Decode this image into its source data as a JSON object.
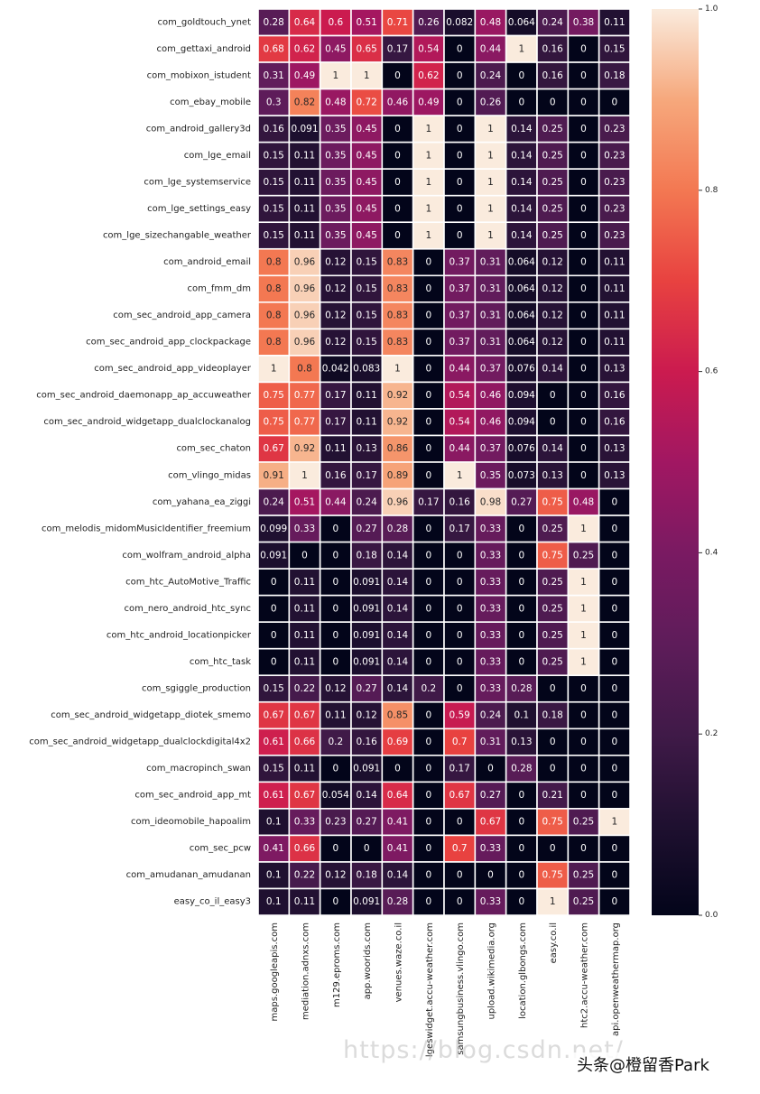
{
  "chart_data": {
    "type": "heatmap",
    "rows": [
      "com_goldtouch_ynet",
      "com_gettaxi_android",
      "com_mobixon_istudent",
      "com_ebay_mobile",
      "com_android_gallery3d",
      "com_lge_email",
      "com_lge_systemservice",
      "com_lge_settings_easy",
      "com_lge_sizechangable_weather",
      "com_android_email",
      "com_fmm_dm",
      "com_sec_android_app_camera",
      "com_sec_android_app_clockpackage",
      "com_sec_android_app_videoplayer",
      "com_sec_android_daemonapp_ap_accuweather",
      "com_sec_android_widgetapp_dualclockanalog",
      "com_sec_chaton",
      "com_vlingo_midas",
      "com_yahana_ea_ziggi",
      "com_melodis_midomMusicIdentifier_freemium",
      "com_wolfram_android_alpha",
      "com_htc_AutoMotive_Traffic",
      "com_nero_android_htc_sync",
      "com_htc_android_locationpicker",
      "com_htc_task",
      "com_sgiggle_production",
      "com_sec_android_widgetapp_diotek_smemo",
      "com_sec_android_widgetapp_dualclockdigital4x2",
      "com_macropinch_swan",
      "com_sec_android_app_mt",
      "com_ideomobile_hapoalim",
      "com_sec_pcw",
      "com_amudanan_amudanan",
      "easy_co_il_easy3"
    ],
    "columns": [
      "maps.googleapis.com",
      "mediation.adnxs.com",
      "m129.eproms.com",
      "app.woorids.com",
      "venues.waze.co.il",
      "lgeswidget.accu-weather.com",
      "samsungbusiness.vlingo.com",
      "upload.wikimedia.org",
      "location.glbongs.com",
      "easy.co.il",
      "htc2.accu-weather.com",
      "api.openweathermap.org"
    ],
    "values": [
      [
        "0.28",
        "0.64",
        "0.6",
        "0.51",
        "0.71",
        "0.26",
        "0.082",
        "0.48",
        "0.064",
        "0.24",
        "0.38",
        "0.11"
      ],
      [
        "0.68",
        "0.62",
        "0.45",
        "0.65",
        "0.17",
        "0.54",
        "0",
        "0.44",
        "1",
        "0.16",
        "0",
        "0.15"
      ],
      [
        "0.31",
        "0.49",
        "1",
        "1",
        "0",
        "0.62",
        "0",
        "0.24",
        "0",
        "0.16",
        "0",
        "0.18"
      ],
      [
        "0.3",
        "0.82",
        "0.48",
        "0.72",
        "0.46",
        "0.49",
        "0",
        "0.26",
        "0",
        "0",
        "0",
        "0"
      ],
      [
        "0.16",
        "0.091",
        "0.35",
        "0.45",
        "0",
        "1",
        "0",
        "1",
        "0.14",
        "0.25",
        "0",
        "0.23"
      ],
      [
        "0.15",
        "0.11",
        "0.35",
        "0.45",
        "0",
        "1",
        "0",
        "1",
        "0.14",
        "0.25",
        "0",
        "0.23"
      ],
      [
        "0.15",
        "0.11",
        "0.35",
        "0.45",
        "0",
        "1",
        "0",
        "1",
        "0.14",
        "0.25",
        "0",
        "0.23"
      ],
      [
        "0.15",
        "0.11",
        "0.35",
        "0.45",
        "0",
        "1",
        "0",
        "1",
        "0.14",
        "0.25",
        "0",
        "0.23"
      ],
      [
        "0.15",
        "0.11",
        "0.35",
        "0.45",
        "0",
        "1",
        "0",
        "1",
        "0.14",
        "0.25",
        "0",
        "0.23"
      ],
      [
        "0.8",
        "0.96",
        "0.12",
        "0.15",
        "0.83",
        "0",
        "0.37",
        "0.31",
        "0.064",
        "0.12",
        "0",
        "0.11"
      ],
      [
        "0.8",
        "0.96",
        "0.12",
        "0.15",
        "0.83",
        "0",
        "0.37",
        "0.31",
        "0.064",
        "0.12",
        "0",
        "0.11"
      ],
      [
        "0.8",
        "0.96",
        "0.12",
        "0.15",
        "0.83",
        "0",
        "0.37",
        "0.31",
        "0.064",
        "0.12",
        "0",
        "0.11"
      ],
      [
        "0.8",
        "0.96",
        "0.12",
        "0.15",
        "0.83",
        "0",
        "0.37",
        "0.31",
        "0.064",
        "0.12",
        "0",
        "0.11"
      ],
      [
        "1",
        "0.8",
        "0.042",
        "0.083",
        "1",
        "0",
        "0.44",
        "0.37",
        "0.076",
        "0.14",
        "0",
        "0.13"
      ],
      [
        "0.75",
        "0.77",
        "0.17",
        "0.11",
        "0.92",
        "0",
        "0.54",
        "0.46",
        "0.094",
        "0",
        "0",
        "0.16"
      ],
      [
        "0.75",
        "0.77",
        "0.17",
        "0.11",
        "0.92",
        "0",
        "0.54",
        "0.46",
        "0.094",
        "0",
        "0",
        "0.16"
      ],
      [
        "0.67",
        "0.92",
        "0.11",
        "0.13",
        "0.86",
        "0",
        "0.44",
        "0.37",
        "0.076",
        "0.14",
        "0",
        "0.13"
      ],
      [
        "0.91",
        "1",
        "0.16",
        "0.17",
        "0.89",
        "0",
        "1",
        "0.35",
        "0.073",
        "0.13",
        "0",
        "0.13"
      ],
      [
        "0.24",
        "0.51",
        "0.44",
        "0.24",
        "0.96",
        "0.17",
        "0.16",
        "0.98",
        "0.27",
        "0.75",
        "0.48",
        "0"
      ],
      [
        "0.099",
        "0.33",
        "0",
        "0.27",
        "0.28",
        "0",
        "0.17",
        "0.33",
        "0",
        "0.25",
        "1",
        "0"
      ],
      [
        "0.091",
        "0",
        "0",
        "0.18",
        "0.14",
        "0",
        "0",
        "0.33",
        "0",
        "0.75",
        "0.25",
        "0"
      ],
      [
        "0",
        "0.11",
        "0",
        "0.091",
        "0.14",
        "0",
        "0",
        "0.33",
        "0",
        "0.25",
        "1",
        "0"
      ],
      [
        "0",
        "0.11",
        "0",
        "0.091",
        "0.14",
        "0",
        "0",
        "0.33",
        "0",
        "0.25",
        "1",
        "0"
      ],
      [
        "0",
        "0.11",
        "0",
        "0.091",
        "0.14",
        "0",
        "0",
        "0.33",
        "0",
        "0.25",
        "1",
        "0"
      ],
      [
        "0",
        "0.11",
        "0",
        "0.091",
        "0.14",
        "0",
        "0",
        "0.33",
        "0",
        "0.25",
        "1",
        "0"
      ],
      [
        "0.15",
        "0.22",
        "0.12",
        "0.27",
        "0.14",
        "0.2",
        "0",
        "0.33",
        "0.28",
        "0",
        "0",
        "0"
      ],
      [
        "0.67",
        "0.67",
        "0.11",
        "0.12",
        "0.85",
        "0",
        "0.59",
        "0.24",
        "0.1",
        "0.18",
        "0",
        "0"
      ],
      [
        "0.61",
        "0.66",
        "0.2",
        "0.16",
        "0.69",
        "0",
        "0.7",
        "0.31",
        "0.13",
        "0",
        "0",
        "0"
      ],
      [
        "0.15",
        "0.11",
        "0",
        "0.091",
        "0",
        "0",
        "0.17",
        "0",
        "0.28",
        "0",
        "0",
        "0"
      ],
      [
        "0.61",
        "0.67",
        "0.054",
        "0.14",
        "0.64",
        "0",
        "0.67",
        "0.27",
        "0",
        "0.21",
        "0",
        "0"
      ],
      [
        "0.1",
        "0.33",
        "0.23",
        "0.27",
        "0.41",
        "0",
        "0",
        "0.67",
        "0",
        "0.75",
        "0.25",
        "1"
      ],
      [
        "0.41",
        "0.66",
        "0",
        "0",
        "0.41",
        "0",
        "0.7",
        "0.33",
        "0",
        "0",
        "0",
        "0"
      ],
      [
        "0.1",
        "0.22",
        "0.12",
        "0.18",
        "0.14",
        "0",
        "0",
        "0",
        "0",
        "0.75",
        "0.25",
        "0"
      ],
      [
        "0.1",
        "0.11",
        "0",
        "0.091",
        "0.28",
        "0",
        "0",
        "0.33",
        "0",
        "1",
        "0.25",
        "0"
      ]
    ],
    "vmin": 0,
    "vmax": 1,
    "colormap": "rocket",
    "annotated": true,
    "colorbar": {
      "position": "right",
      "ticks": [
        "0.0",
        "0.2",
        "0.4",
        "0.6",
        "0.8",
        "1.0"
      ]
    }
  },
  "watermark": {
    "url": "https://blog.csdn.net/",
    "author": "头条@橙留香Park"
  }
}
